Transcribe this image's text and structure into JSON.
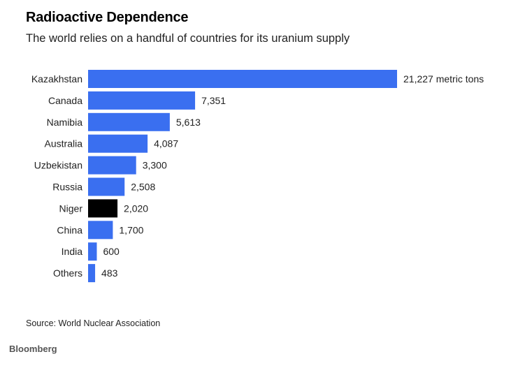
{
  "chart_data": {
    "type": "bar",
    "orientation": "horizontal",
    "title": "Radioactive Dependence",
    "subtitle": "The world relies on a handful of countries for its uranium supply",
    "categories": [
      "Kazakhstan",
      "Canada",
      "Namibia",
      "Australia",
      "Uzbekistan",
      "Russia",
      "Niger",
      "China",
      "India",
      "Others"
    ],
    "values": [
      21227,
      7351,
      5613,
      4087,
      3300,
      2508,
      2020,
      1700,
      600,
      483
    ],
    "value_labels": [
      "21,227 metric tons",
      "7,351",
      "5,613",
      "4,087",
      "3,300",
      "2,508",
      "2,020",
      "1,700",
      "600",
      "483"
    ],
    "unit": "metric tons",
    "highlight": "Niger",
    "colors": {
      "default": "#3a6ff0",
      "highlight": "#000000"
    },
    "xlabel": "",
    "ylabel": "",
    "xlim": [
      0,
      21227
    ],
    "grid": false,
    "legend": "none",
    "source": "Source: World Nuclear Association"
  },
  "footer": {
    "brand": "Bloomberg"
  }
}
